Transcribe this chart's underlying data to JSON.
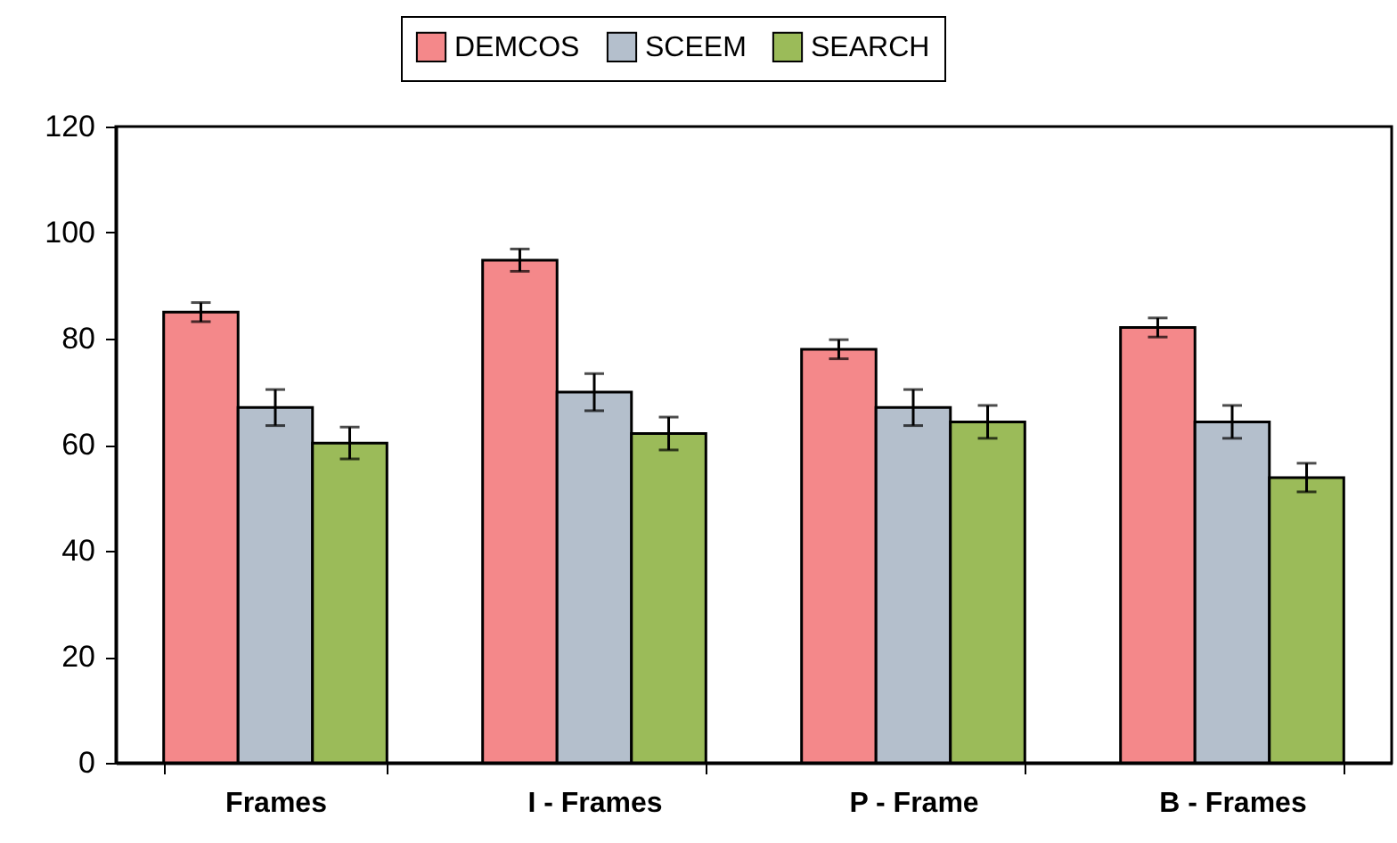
{
  "chart_data": {
    "type": "bar",
    "categories": [
      "Frames",
      "I - Frames",
      "P - Frame",
      "B - Frames"
    ],
    "series": [
      {
        "name": "DEMCOS",
        "color": "#f4888a",
        "values": [
          85.0,
          94.8,
          78.0,
          82.1
        ],
        "errors": [
          1.8,
          2.1,
          1.8,
          1.8
        ]
      },
      {
        "name": "SCEEM",
        "color": "#b4bfcc",
        "values": [
          67.0,
          69.9,
          67.0,
          64.3
        ],
        "errors": [
          3.4,
          3.5,
          3.4,
          3.1
        ]
      },
      {
        "name": "SEARCH",
        "color": "#9bbb59",
        "values": [
          60.3,
          62.1,
          64.3,
          53.8
        ],
        "errors": [
          3.0,
          3.1,
          3.1,
          2.7
        ]
      }
    ],
    "ylim": [
      0,
      120
    ],
    "yticks": [
      0,
      20,
      40,
      60,
      80,
      100,
      120
    ],
    "grid": false,
    "legend": "top"
  }
}
